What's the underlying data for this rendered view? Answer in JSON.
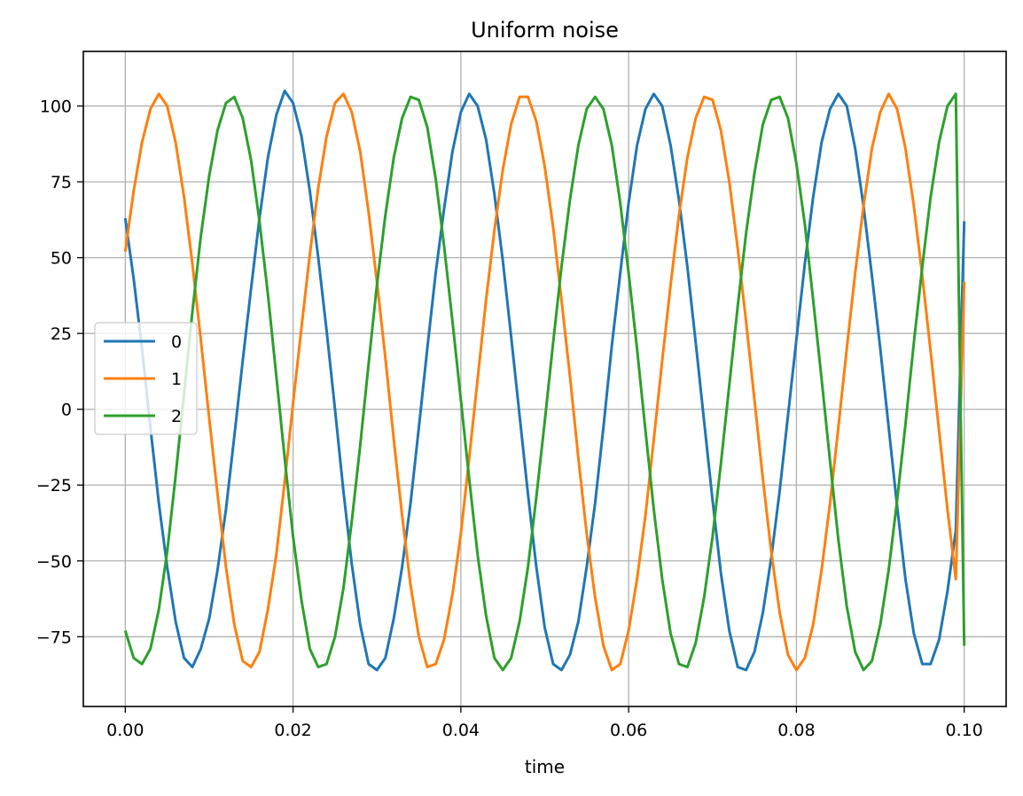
{
  "chart_data": {
    "type": "line",
    "title": "Uniform noise",
    "xlabel": "time",
    "ylabel": "",
    "xlim": [
      -0.005,
      0.105
    ],
    "ylim": [
      -98,
      118
    ],
    "x_ticks": [
      0.0,
      0.02,
      0.04,
      0.06,
      0.08,
      0.1
    ],
    "x_tick_labels": [
      "0.00",
      "0.02",
      "0.04",
      "0.06",
      "0.08",
      "0.10"
    ],
    "y_ticks": [
      -75,
      -50,
      -25,
      0,
      25,
      50,
      75,
      100
    ],
    "y_tick_labels": [
      "−75",
      "−50",
      "−25",
      "0",
      "25",
      "50",
      "75",
      "100"
    ],
    "grid": true,
    "legend_position": "center-left",
    "series": [
      {
        "name": "0",
        "color": "#1f77b4",
        "x": [
          0.0,
          0.001,
          0.002,
          0.003,
          0.004,
          0.005,
          0.006,
          0.007,
          0.008,
          0.009,
          0.01,
          0.011,
          0.012,
          0.013,
          0.014,
          0.015,
          0.016,
          0.017,
          0.018,
          0.019,
          0.02,
          0.021,
          0.022,
          0.023,
          0.024,
          0.025,
          0.026,
          0.027,
          0.028,
          0.029,
          0.03,
          0.031,
          0.032,
          0.033,
          0.034,
          0.035,
          0.036,
          0.037,
          0.038,
          0.039,
          0.04,
          0.041,
          0.042,
          0.043,
          0.044,
          0.045,
          0.046,
          0.047,
          0.048,
          0.049,
          0.05,
          0.051,
          0.052,
          0.053,
          0.054,
          0.055,
          0.056,
          0.057,
          0.058,
          0.059,
          0.06,
          0.061,
          0.062,
          0.063,
          0.064,
          0.065,
          0.066,
          0.067,
          0.068,
          0.069,
          0.07,
          0.071,
          0.072,
          0.073,
          0.074,
          0.075,
          0.076,
          0.077,
          0.078,
          0.079,
          0.08,
          0.081,
          0.082,
          0.083,
          0.084,
          0.085,
          0.086,
          0.087,
          0.088,
          0.089,
          0.09,
          0.091,
          0.092,
          0.093,
          0.094,
          0.095,
          0.096,
          0.097,
          0.098,
          0.099,
          0.1
        ],
        "values": [
          63,
          43,
          20,
          -6,
          -31,
          -52,
          -70,
          -82,
          -85,
          -79,
          -69,
          -53,
          -33,
          -9,
          16,
          40,
          63,
          83,
          97,
          105,
          101,
          90,
          72,
          50,
          26,
          0,
          -27,
          -51,
          -71,
          -84,
          -86,
          -82,
          -69,
          -52,
          -31,
          -6,
          20,
          45,
          66,
          85,
          98,
          104,
          100,
          89,
          71,
          49,
          24,
          -2,
          -28,
          -52,
          -72,
          -84,
          -86,
          -81,
          -70,
          -52,
          -31,
          -6,
          21,
          45,
          68,
          87,
          99,
          104,
          100,
          87,
          69,
          47,
          22,
          -4,
          -30,
          -54,
          -73,
          -85,
          -86,
          -80,
          -67,
          -49,
          -27,
          -2,
          23,
          48,
          70,
          88,
          99,
          104,
          100,
          86,
          67,
          44,
          20,
          -6,
          -32,
          -56,
          -74,
          -84,
          -84,
          -76,
          -60,
          -40,
          62
        ]
      },
      {
        "name": "1",
        "color": "#ff7f0e",
        "x": [
          0.0,
          0.001,
          0.002,
          0.003,
          0.004,
          0.005,
          0.006,
          0.007,
          0.008,
          0.009,
          0.01,
          0.011,
          0.012,
          0.013,
          0.014,
          0.015,
          0.016,
          0.017,
          0.018,
          0.019,
          0.02,
          0.021,
          0.022,
          0.023,
          0.024,
          0.025,
          0.026,
          0.027,
          0.028,
          0.029,
          0.03,
          0.031,
          0.032,
          0.033,
          0.034,
          0.035,
          0.036,
          0.037,
          0.038,
          0.039,
          0.04,
          0.041,
          0.042,
          0.043,
          0.044,
          0.045,
          0.046,
          0.047,
          0.048,
          0.049,
          0.05,
          0.051,
          0.052,
          0.053,
          0.054,
          0.055,
          0.056,
          0.057,
          0.058,
          0.059,
          0.06,
          0.061,
          0.062,
          0.063,
          0.064,
          0.065,
          0.066,
          0.067,
          0.068,
          0.069,
          0.07,
          0.071,
          0.072,
          0.073,
          0.074,
          0.075,
          0.076,
          0.077,
          0.078,
          0.079,
          0.08,
          0.081,
          0.082,
          0.083,
          0.084,
          0.085,
          0.086,
          0.087,
          0.088,
          0.089,
          0.09,
          0.091,
          0.092,
          0.093,
          0.094,
          0.095,
          0.096,
          0.097,
          0.098,
          0.099,
          0.1
        ],
        "values": [
          52,
          72,
          88,
          99,
          104,
          100,
          88,
          70,
          48,
          23,
          -3,
          -28,
          -52,
          -71,
          -83,
          -85,
          -80,
          -66,
          -48,
          -24,
          2,
          27,
          51,
          73,
          90,
          101,
          104,
          98,
          85,
          65,
          42,
          17,
          -10,
          -35,
          -58,
          -75,
          -85,
          -84,
          -76,
          -61,
          -41,
          -16,
          10,
          36,
          59,
          79,
          94,
          103,
          103,
          95,
          80,
          60,
          36,
          11,
          -16,
          -41,
          -62,
          -78,
          -86,
          -84,
          -73,
          -56,
          -35,
          -10,
          16,
          41,
          64,
          83,
          96,
          103,
          102,
          92,
          75,
          53,
          29,
          3,
          -23,
          -47,
          -67,
          -81,
          -86,
          -82,
          -71,
          -53,
          -31,
          -6,
          20,
          45,
          67,
          86,
          98,
          104,
          99,
          86,
          67,
          44,
          19,
          -7,
          -33,
          -56,
          42
        ]
      },
      {
        "name": "2",
        "color": "#2ca02c",
        "x": [
          0.0,
          0.001,
          0.002,
          0.003,
          0.004,
          0.005,
          0.006,
          0.007,
          0.008,
          0.009,
          0.01,
          0.011,
          0.012,
          0.013,
          0.014,
          0.015,
          0.016,
          0.017,
          0.018,
          0.019,
          0.02,
          0.021,
          0.022,
          0.023,
          0.024,
          0.025,
          0.026,
          0.027,
          0.028,
          0.029,
          0.03,
          0.031,
          0.032,
          0.033,
          0.034,
          0.035,
          0.036,
          0.037,
          0.038,
          0.039,
          0.04,
          0.041,
          0.042,
          0.043,
          0.044,
          0.045,
          0.046,
          0.047,
          0.048,
          0.049,
          0.05,
          0.051,
          0.052,
          0.053,
          0.054,
          0.055,
          0.056,
          0.057,
          0.058,
          0.059,
          0.06,
          0.061,
          0.062,
          0.063,
          0.064,
          0.065,
          0.066,
          0.067,
          0.068,
          0.069,
          0.07,
          0.071,
          0.072,
          0.073,
          0.074,
          0.075,
          0.076,
          0.077,
          0.078,
          0.079,
          0.08,
          0.081,
          0.082,
          0.083,
          0.084,
          0.085,
          0.086,
          0.087,
          0.088,
          0.089,
          0.09,
          0.091,
          0.092,
          0.093,
          0.094,
          0.095,
          0.096,
          0.097,
          0.098,
          0.099,
          0.1
        ],
        "values": [
          -73,
          -82,
          -84,
          -79,
          -66,
          -47,
          -22,
          5,
          32,
          57,
          77,
          92,
          101,
          103,
          96,
          82,
          62,
          38,
          11,
          -16,
          -42,
          -63,
          -79,
          -85,
          -84,
          -75,
          -59,
          -37,
          -12,
          15,
          41,
          64,
          83,
          96,
          103,
          102,
          93,
          76,
          54,
          29,
          3,
          -23,
          -48,
          -68,
          -82,
          -86,
          -82,
          -70,
          -52,
          -29,
          -4,
          22,
          47,
          69,
          87,
          99,
          103,
          99,
          87,
          68,
          45,
          20,
          -7,
          -33,
          -56,
          -74,
          -84,
          -85,
          -77,
          -62,
          -42,
          -18,
          8,
          34,
          58,
          78,
          94,
          102,
          103,
          96,
          81,
          61,
          36,
          10,
          -17,
          -43,
          -65,
          -80,
          -86,
          -83,
          -71,
          -53,
          -30,
          -5,
          22,
          47,
          70,
          88,
          100,
          104,
          -78
        ]
      }
    ]
  }
}
